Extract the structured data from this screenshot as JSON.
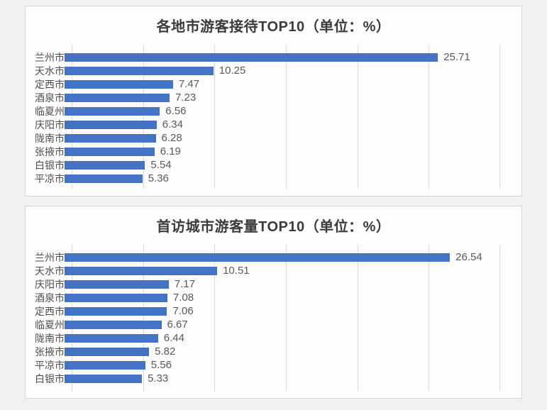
{
  "page": {
    "background": "#f1f1f1",
    "panel_background": "#fdfdfd",
    "panel_border": "#d6d6d6",
    "grid_color": "#d9d9d9",
    "bar_color": "#4472c4",
    "title_color": "#3b3b3b",
    "category_color": "#4d4d4d",
    "value_color": "#595959"
  },
  "chart_data": [
    {
      "type": "bar",
      "orientation": "horizontal",
      "title": "各地市游客接待TOP10（单位：%）",
      "categories": [
        "兰州市",
        "天水市",
        "定西市",
        "酒泉市",
        "临夏州",
        "庆阳市",
        "陇南市",
        "张掖市",
        "白银市",
        "平凉市"
      ],
      "values": [
        25.71,
        10.25,
        7.47,
        7.23,
        6.56,
        6.34,
        6.28,
        6.19,
        5.54,
        5.36
      ],
      "value_labels": [
        "25.71",
        "10.25",
        "7.47",
        "7.23",
        "6.56",
        "6.34",
        "6.28",
        "6.19",
        "5.54",
        "5.36"
      ],
      "xlabel": "",
      "ylabel": "",
      "xlim": [
        0,
        30
      ],
      "gridline_interval": 5,
      "grid": true,
      "legend": false,
      "data_labels": true
    },
    {
      "type": "bar",
      "orientation": "horizontal",
      "title": "首访城市游客量TOP10（单位：%）",
      "categories": [
        "兰州市",
        "天水市",
        "庆阳市",
        "酒泉市",
        "定西市",
        "临夏州",
        "陇南市",
        "张掖市",
        "平凉市",
        "白银市"
      ],
      "values": [
        26.54,
        10.51,
        7.17,
        7.08,
        7.06,
        6.67,
        6.44,
        5.82,
        5.56,
        5.33
      ],
      "value_labels": [
        "26.54",
        "10.51",
        "7.17",
        "7.08",
        "7.06",
        "6.67",
        "6.44",
        "5.82",
        "5.56",
        "5.33"
      ],
      "xlabel": "",
      "ylabel": "",
      "xlim": [
        0,
        30
      ],
      "gridline_interval": 5,
      "grid": true,
      "legend": false,
      "data_labels": true
    }
  ]
}
